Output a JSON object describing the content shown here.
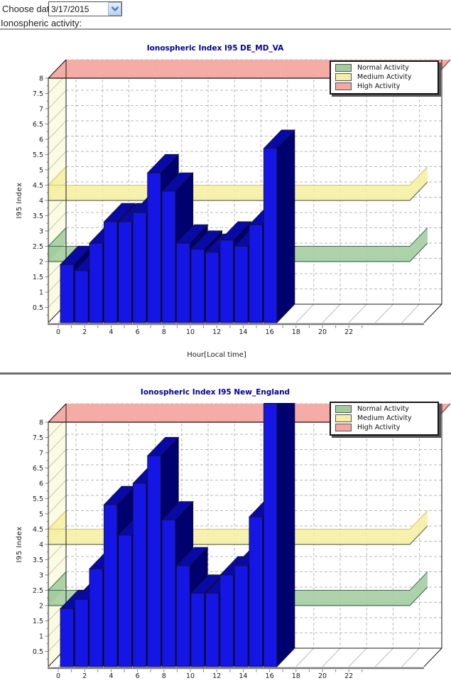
{
  "page": {
    "choose_date_label": "Choose date:",
    "date_value": "3/17/2015",
    "section_label": "Ionospheric activity:"
  },
  "chart_data": [
    {
      "type": "bar",
      "title": "Ionospheric Index I95 DE_MD_VA",
      "xlabel": "Hour[Local time]",
      "ylabel": "I95 Index",
      "x_ticks": [
        0,
        2,
        4,
        6,
        8,
        10,
        12,
        14,
        16,
        18,
        20,
        22
      ],
      "ylim": [
        0,
        8
      ],
      "y_tick_step": 0.5,
      "hours": [
        0,
        1,
        2,
        3,
        4,
        5,
        6,
        7,
        8,
        9,
        10,
        11,
        12,
        13,
        14
      ],
      "values": [
        1.9,
        1.7,
        2.6,
        3.3,
        3.3,
        3.6,
        4.9,
        4.3,
        2.6,
        2.4,
        2.3,
        2.7,
        2.5,
        3.2,
        5.7
      ],
      "bar_color": "#1515e6",
      "legend": [
        {
          "label": "Normal Activity",
          "color": "#a3cc9e",
          "band": [
            2,
            2.5
          ]
        },
        {
          "label": "Medium Activity",
          "color": "#f6efa3",
          "band": [
            4,
            4.5
          ]
        },
        {
          "label": "High Activity",
          "color": "#f4a8a2",
          "band": [
            8,
            8.6
          ]
        }
      ]
    },
    {
      "type": "bar",
      "title": "Ionospheric Index I95 New_England",
      "xlabel": "",
      "ylabel": "I95 Index",
      "x_ticks": [
        0,
        2,
        4,
        6,
        8,
        10,
        12,
        14,
        16,
        18,
        20,
        22
      ],
      "ylim": [
        0,
        8
      ],
      "y_tick_step": 0.5,
      "hours": [
        0,
        1,
        2,
        3,
        4,
        5,
        6,
        7,
        8,
        9,
        10,
        11,
        12,
        13,
        14
      ],
      "values": [
        1.9,
        2.2,
        3.2,
        5.3,
        4.3,
        6.0,
        6.9,
        4.8,
        3.3,
        2.4,
        2.4,
        3.0,
        3.3,
        4.9,
        8.6
      ],
      "last_bar_clipped": true,
      "bar_color": "#1515e6",
      "legend": [
        {
          "label": "Normal Activity",
          "color": "#a3cc9e",
          "band": [
            2,
            2.5
          ]
        },
        {
          "label": "Medium Activity",
          "color": "#f6efa3",
          "band": [
            4,
            4.5
          ]
        },
        {
          "label": "High Activity",
          "color": "#f4a8a2",
          "band": [
            8,
            8.6
          ]
        }
      ]
    }
  ]
}
